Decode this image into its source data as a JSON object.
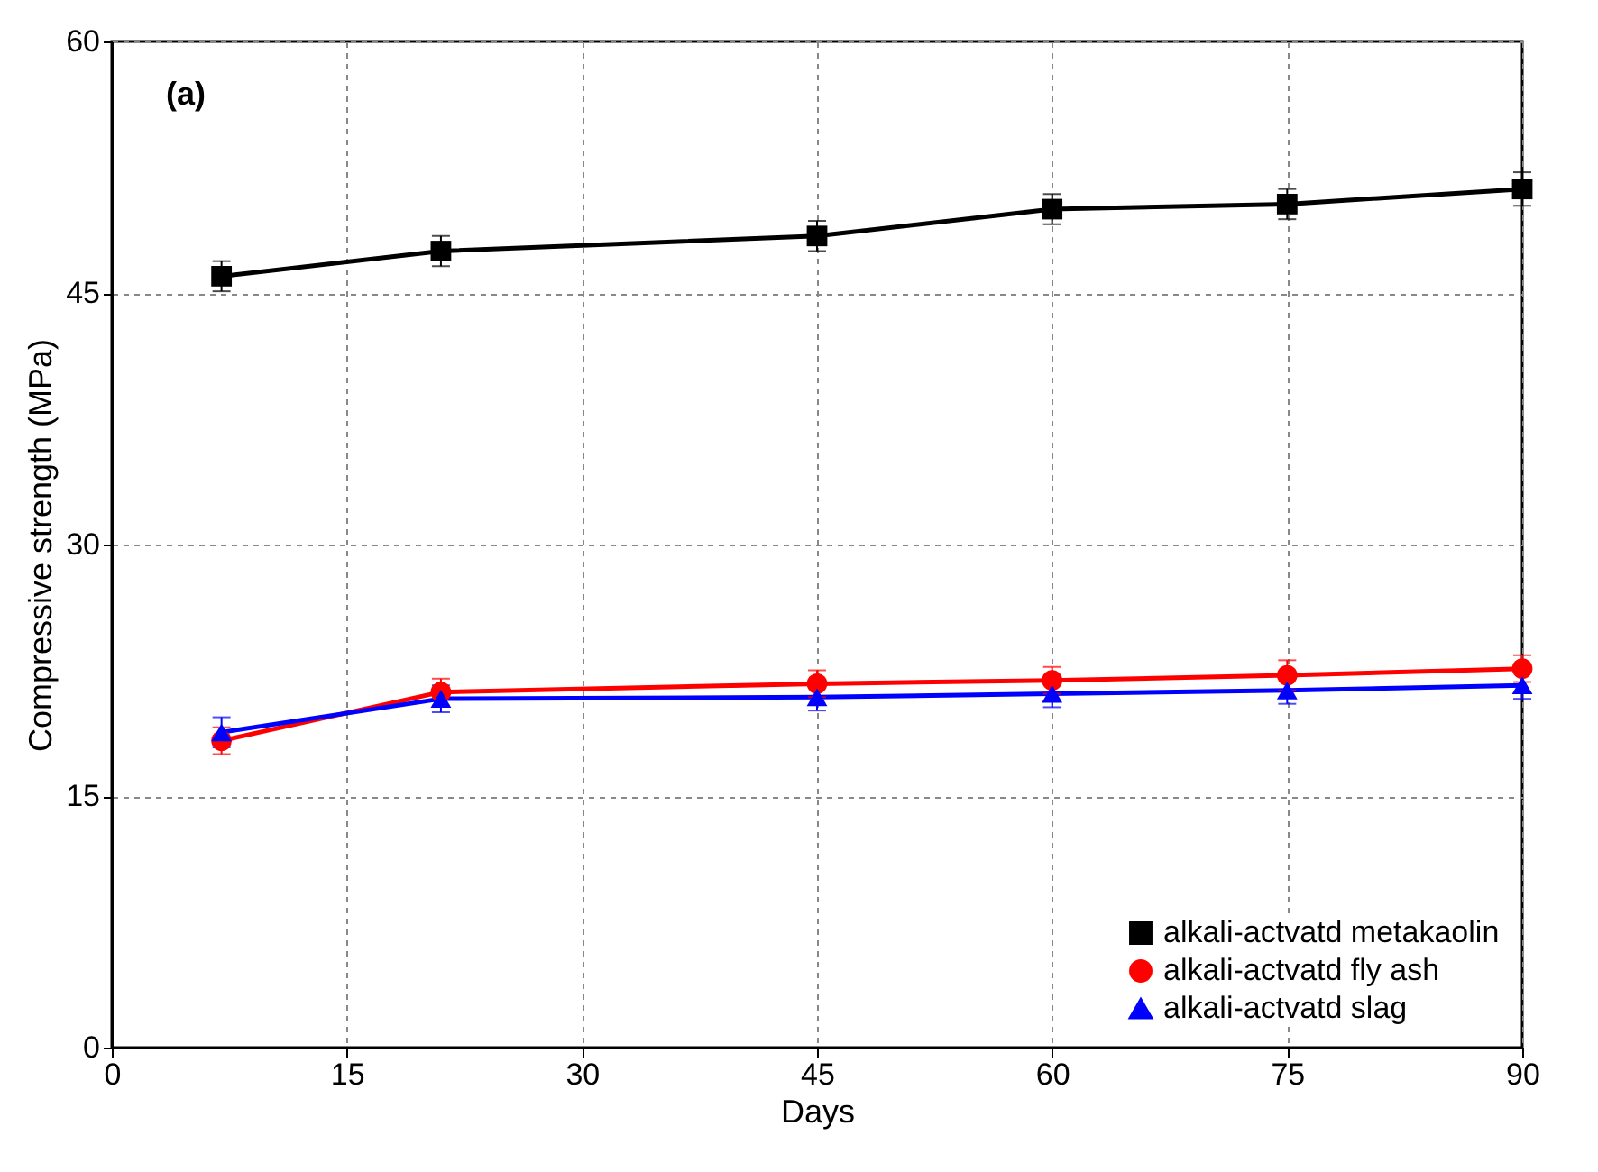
{
  "chart_data": {
    "type": "line",
    "xlabel": "Days",
    "ylabel": "Compressive strength (MPa)",
    "annotations": [
      "(a)"
    ],
    "xlim": [
      0,
      90
    ],
    "xticks": [
      0,
      15,
      30,
      45,
      60,
      75,
      90
    ],
    "ylim": [
      0,
      60
    ],
    "yticks": [
      0,
      15,
      30,
      45,
      60
    ],
    "grid": true,
    "legend": "bottom right",
    "line_style": "solid",
    "x": [
      7,
      21,
      45,
      60,
      75,
      90
    ],
    "series": [
      {
        "name": "alkali-actvatd metakaolin",
        "color": "#000000",
        "marker": "square",
        "values": [
          46.0,
          47.5,
          48.4,
          50.0,
          50.3,
          51.2
        ],
        "errors": [
          0.9,
          0.9,
          0.9,
          0.9,
          0.9,
          1.0
        ]
      },
      {
        "name": "alkali-actvatd fly ash",
        "color": "#ff0000",
        "marker": "circle",
        "values": [
          18.3,
          21.2,
          21.7,
          21.9,
          22.2,
          22.6
        ],
        "errors": [
          0.8,
          0.8,
          0.8,
          0.8,
          0.9,
          0.8
        ]
      },
      {
        "name": "alkali-actvatd slag",
        "color": "#0000ff",
        "marker": "triangle",
        "values": [
          18.8,
          20.8,
          20.9,
          21.1,
          21.3,
          21.6
        ],
        "errors": [
          0.9,
          0.8,
          0.8,
          0.8,
          0.8,
          0.8
        ]
      }
    ]
  }
}
